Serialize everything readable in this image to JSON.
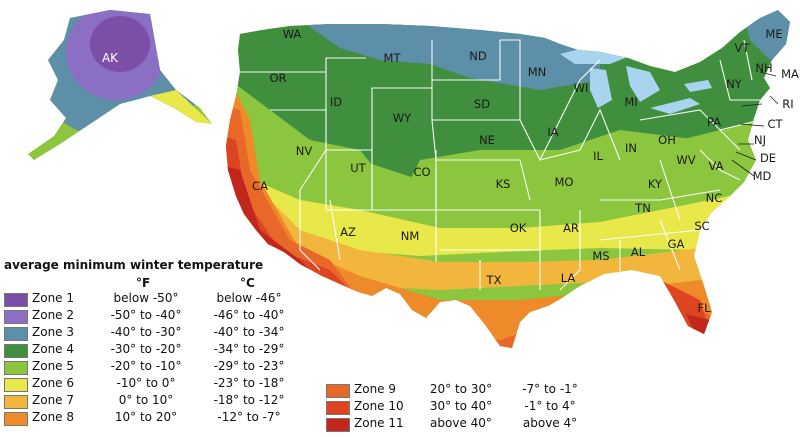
{
  "legend": {
    "title": "average minimum winter temperature",
    "unit_f": "°F",
    "unit_c": "°C",
    "zones": [
      {
        "name": "Zone 1",
        "f": "below -50°",
        "c": "below -46°",
        "color": "#7b4fa8"
      },
      {
        "name": "Zone 2",
        "f": "-50° to -40°",
        "c": "-46° to -40°",
        "color": "#8a6fc4"
      },
      {
        "name": "Zone 3",
        "f": "-40° to -30°",
        "c": "-40° to -34°",
        "color": "#5e8fa8"
      },
      {
        "name": "Zone 4",
        "f": "-30° to -20°",
        "c": "-34° to -29°",
        "color": "#3f8f3f"
      },
      {
        "name": "Zone 5",
        "f": "-20° to -10°",
        "c": "-29° to -23°",
        "color": "#8cc63f"
      },
      {
        "name": "Zone 6",
        "f": "-10° to 0°",
        "c": "-23° to -18°",
        "color": "#e8e84a"
      },
      {
        "name": "Zone 7",
        "f": "0° to 10°",
        "c": "-18° to -12°",
        "color": "#f2b63c"
      },
      {
        "name": "Zone 8",
        "f": "10° to 20°",
        "c": "-12° to -7°",
        "color": "#ee8a2a"
      },
      {
        "name": "Zone 9",
        "f": "20° to 30°",
        "c": "-7° to -1°",
        "color": "#e8682a"
      },
      {
        "name": "Zone 10",
        "f": "30° to 40°",
        "c": "-1° to 4°",
        "color": "#dd4422"
      },
      {
        "name": "Zone 11",
        "f": "above 40°",
        "c": "above 4°",
        "color": "#c2261c"
      }
    ]
  },
  "states": [
    "AK",
    "WA",
    "OR",
    "CA",
    "ID",
    "NV",
    "MT",
    "WY",
    "UT",
    "AZ",
    "CO",
    "NM",
    "ND",
    "SD",
    "NE",
    "KS",
    "OK",
    "TX",
    "MN",
    "IA",
    "MO",
    "AR",
    "LA",
    "WI",
    "IL",
    "MS",
    "MI",
    "IN",
    "OH",
    "KY",
    "TN",
    "AL",
    "GA",
    "FL",
    "SC",
    "NC",
    "VA",
    "WV",
    "PA",
    "NY",
    "VT",
    "NH",
    "ME",
    "MA",
    "RI",
    "CT",
    "NJ",
    "DE",
    "MD"
  ],
  "colors": {
    "water": "#a8d4ef",
    "border": "#ffffff",
    "land_outline": "#ffffff"
  }
}
